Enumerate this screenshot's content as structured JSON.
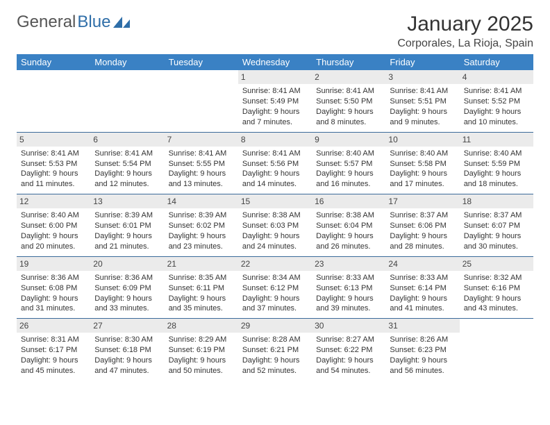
{
  "logo": {
    "text1": "General",
    "text2": "Blue"
  },
  "title": "January 2025",
  "location": "Corporales, La Rioja, Spain",
  "colors": {
    "header_bg": "#3a81c4",
    "header_fg": "#ffffff",
    "daynum_bg": "#ebebeb",
    "cell_border": "#3a6a9a",
    "logo_gray": "#555555",
    "logo_blue": "#2f6ea8"
  },
  "daysOfWeek": [
    "Sunday",
    "Monday",
    "Tuesday",
    "Wednesday",
    "Thursday",
    "Friday",
    "Saturday"
  ],
  "layout": {
    "firstDayOffset": 3,
    "totalDays": 31
  },
  "days": {
    "1": {
      "sunrise": "8:41 AM",
      "sunset": "5:49 PM",
      "daylight": "9 hours and 7 minutes."
    },
    "2": {
      "sunrise": "8:41 AM",
      "sunset": "5:50 PM",
      "daylight": "9 hours and 8 minutes."
    },
    "3": {
      "sunrise": "8:41 AM",
      "sunset": "5:51 PM",
      "daylight": "9 hours and 9 minutes."
    },
    "4": {
      "sunrise": "8:41 AM",
      "sunset": "5:52 PM",
      "daylight": "9 hours and 10 minutes."
    },
    "5": {
      "sunrise": "8:41 AM",
      "sunset": "5:53 PM",
      "daylight": "9 hours and 11 minutes."
    },
    "6": {
      "sunrise": "8:41 AM",
      "sunset": "5:54 PM",
      "daylight": "9 hours and 12 minutes."
    },
    "7": {
      "sunrise": "8:41 AM",
      "sunset": "5:55 PM",
      "daylight": "9 hours and 13 minutes."
    },
    "8": {
      "sunrise": "8:41 AM",
      "sunset": "5:56 PM",
      "daylight": "9 hours and 14 minutes."
    },
    "9": {
      "sunrise": "8:40 AM",
      "sunset": "5:57 PM",
      "daylight": "9 hours and 16 minutes."
    },
    "10": {
      "sunrise": "8:40 AM",
      "sunset": "5:58 PM",
      "daylight": "9 hours and 17 minutes."
    },
    "11": {
      "sunrise": "8:40 AM",
      "sunset": "5:59 PM",
      "daylight": "9 hours and 18 minutes."
    },
    "12": {
      "sunrise": "8:40 AM",
      "sunset": "6:00 PM",
      "daylight": "9 hours and 20 minutes."
    },
    "13": {
      "sunrise": "8:39 AM",
      "sunset": "6:01 PM",
      "daylight": "9 hours and 21 minutes."
    },
    "14": {
      "sunrise": "8:39 AM",
      "sunset": "6:02 PM",
      "daylight": "9 hours and 23 minutes."
    },
    "15": {
      "sunrise": "8:38 AM",
      "sunset": "6:03 PM",
      "daylight": "9 hours and 24 minutes."
    },
    "16": {
      "sunrise": "8:38 AM",
      "sunset": "6:04 PM",
      "daylight": "9 hours and 26 minutes."
    },
    "17": {
      "sunrise": "8:37 AM",
      "sunset": "6:06 PM",
      "daylight": "9 hours and 28 minutes."
    },
    "18": {
      "sunrise": "8:37 AM",
      "sunset": "6:07 PM",
      "daylight": "9 hours and 30 minutes."
    },
    "19": {
      "sunrise": "8:36 AM",
      "sunset": "6:08 PM",
      "daylight": "9 hours and 31 minutes."
    },
    "20": {
      "sunrise": "8:36 AM",
      "sunset": "6:09 PM",
      "daylight": "9 hours and 33 minutes."
    },
    "21": {
      "sunrise": "8:35 AM",
      "sunset": "6:11 PM",
      "daylight": "9 hours and 35 minutes."
    },
    "22": {
      "sunrise": "8:34 AM",
      "sunset": "6:12 PM",
      "daylight": "9 hours and 37 minutes."
    },
    "23": {
      "sunrise": "8:33 AM",
      "sunset": "6:13 PM",
      "daylight": "9 hours and 39 minutes."
    },
    "24": {
      "sunrise": "8:33 AM",
      "sunset": "6:14 PM",
      "daylight": "9 hours and 41 minutes."
    },
    "25": {
      "sunrise": "8:32 AM",
      "sunset": "6:16 PM",
      "daylight": "9 hours and 43 minutes."
    },
    "26": {
      "sunrise": "8:31 AM",
      "sunset": "6:17 PM",
      "daylight": "9 hours and 45 minutes."
    },
    "27": {
      "sunrise": "8:30 AM",
      "sunset": "6:18 PM",
      "daylight": "9 hours and 47 minutes."
    },
    "28": {
      "sunrise": "8:29 AM",
      "sunset": "6:19 PM",
      "daylight": "9 hours and 50 minutes."
    },
    "29": {
      "sunrise": "8:28 AM",
      "sunset": "6:21 PM",
      "daylight": "9 hours and 52 minutes."
    },
    "30": {
      "sunrise": "8:27 AM",
      "sunset": "6:22 PM",
      "daylight": "9 hours and 54 minutes."
    },
    "31": {
      "sunrise": "8:26 AM",
      "sunset": "6:23 PM",
      "daylight": "9 hours and 56 minutes."
    }
  },
  "labels": {
    "sunrise": "Sunrise:",
    "sunset": "Sunset:",
    "daylight": "Daylight:"
  }
}
